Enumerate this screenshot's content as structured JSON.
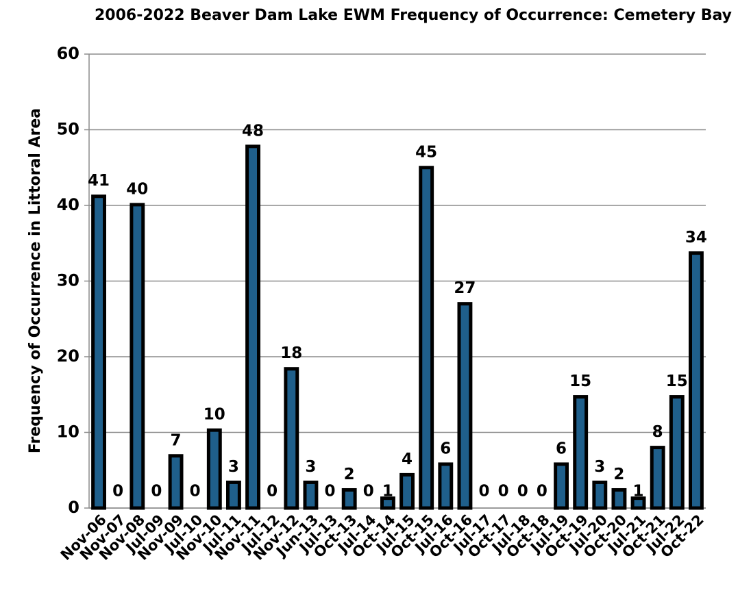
{
  "chart_data": {
    "type": "bar",
    "title": "2006-2022 Beaver Dam Lake EWM Frequency of Occurrence:  Cemetery Bay",
    "y_label": "Frequency of Occurrence in Littoral Area",
    "categories": [
      "Nov-06",
      "Nov-07",
      "Nov-08",
      "Jul-09",
      "Nov-09",
      "Jul-10",
      "Nov-10",
      "Jul-11",
      "Nov-11",
      "Jul-12",
      "Nov-12",
      "Jun-13",
      "Jul-13",
      "Oct-13",
      "Jul-14",
      "Oct-14",
      "Jul-15",
      "Oct-15",
      "Jul-16",
      "Oct-16",
      "Jul-17",
      "Oct-17",
      "Jul-18",
      "Oct-18",
      "Jul-19",
      "Oct-19",
      "Jul-20",
      "Oct-20",
      "Jul-21",
      "Oct-21",
      "Jul-22",
      "Oct-22"
    ],
    "values": [
      41.2,
      0,
      40.1,
      0,
      6.9,
      0,
      10.3,
      3.4,
      47.8,
      0,
      18.4,
      3.4,
      0,
      2.4,
      0,
      1.3,
      4.4,
      45.0,
      5.8,
      27.0,
      0,
      0,
      0,
      0,
      5.8,
      14.7,
      3.4,
      2.4,
      1.3,
      8.0,
      14.7,
      33.7
    ],
    "value_labels": [
      "41",
      "0",
      "40",
      "0",
      "7",
      "0",
      "10",
      "3",
      "48",
      "0",
      "18",
      "3",
      "0",
      "2",
      "0",
      "1",
      "4",
      "45",
      "6",
      "27",
      "0",
      "0",
      "0",
      "0",
      "6",
      "15",
      "3",
      "2",
      "1",
      "8",
      "15",
      "34"
    ],
    "color": "#1f5f8b",
    "ylim": [
      0,
      60
    ],
    "yticks": [
      0,
      10,
      20,
      30,
      40,
      50,
      60
    ],
    "grid": true
  }
}
